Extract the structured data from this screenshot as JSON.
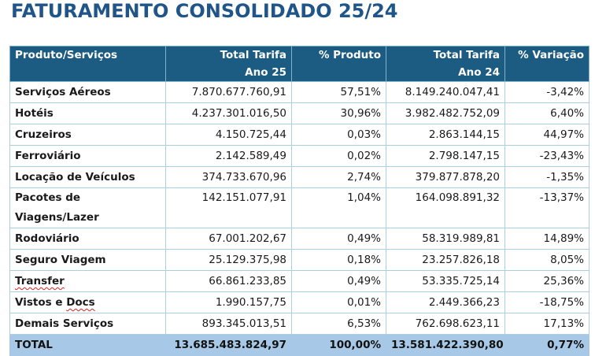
{
  "title": "FATURAMENTO CONSOLIDADO 25/24",
  "table": {
    "headers": [
      {
        "line1": "Produto/Serviços",
        "line2": ""
      },
      {
        "line1": "Total Tarifa",
        "line2": "Ano 25"
      },
      {
        "line1": "% Produto",
        "line2": ""
      },
      {
        "line1": "Total Tarifa",
        "line2": "Ano 24"
      },
      {
        "line1": "% Variação",
        "line2": ""
      }
    ],
    "rows": [
      {
        "product": "Serviços Aéreos",
        "total25": "7.870.677.760,91",
        "pct": "57,51%",
        "total24": "8.149.240.047,41",
        "var": "-3,42%"
      },
      {
        "product": "Hotéis",
        "total25": "4.237.301.016,50",
        "pct": "30,96%",
        "total24": "3.982.482.752,09",
        "var": "6,40%"
      },
      {
        "product": "Cruzeiros",
        "total25": "4.150.725,44",
        "pct": "0,03%",
        "total24": "2.863.144,15",
        "var": "44,97%"
      },
      {
        "product": "Ferroviário",
        "total25": "2.142.589,49",
        "pct": "0,02%",
        "total24": "2.798.147,15",
        "var": "-23,43%"
      },
      {
        "product": "Locação de Veículos",
        "total25": "374.733.670,96",
        "pct": "2,74%",
        "total24": "379.877.878,20",
        "var": "-1,35%"
      },
      {
        "product_line1": "Pacotes de",
        "product_line2": "Viagens/Lazer",
        "total25": "142.151.077,91",
        "pct": "1,04%",
        "total24": "164.098.891,32",
        "var": "-13,37%"
      },
      {
        "product": "Rodoviário",
        "total25": "67.001.202,67",
        "pct": "0,49%",
        "total24": "58.319.989,81",
        "var": "14,89%"
      },
      {
        "product": "Seguro Viagem",
        "total25": "25.129.375,98",
        "pct": "0,18%",
        "total24": "23.257.826,18",
        "var": "8,05%"
      },
      {
        "product": "Transfer",
        "total25": "66.861.233,85",
        "pct": "0,49%",
        "total24": "53.335.725,14",
        "var": "25,36%"
      },
      {
        "product_a": "Vistos e ",
        "product_b": "Docs",
        "total25": "1.990.157,75",
        "pct": "0,01%",
        "total24": "2.449.366,23",
        "var": "-18,75%"
      },
      {
        "product": "Demais Serviços",
        "total25": "893.345.013,51",
        "pct": "6,53%",
        "total24": "762.698.623,11",
        "var": "17,13%"
      }
    ],
    "total": {
      "product": "TOTAL",
      "total25": "13.685.483.824,97",
      "pct": "100,00%",
      "total24": "13.581.422.390,80",
      "var": "0,77%"
    }
  },
  "colors": {
    "title": "#1f5588",
    "header_bg": "#1c5c82",
    "total_bg": "#a7c8e6",
    "grid": "#a9d0e0"
  }
}
